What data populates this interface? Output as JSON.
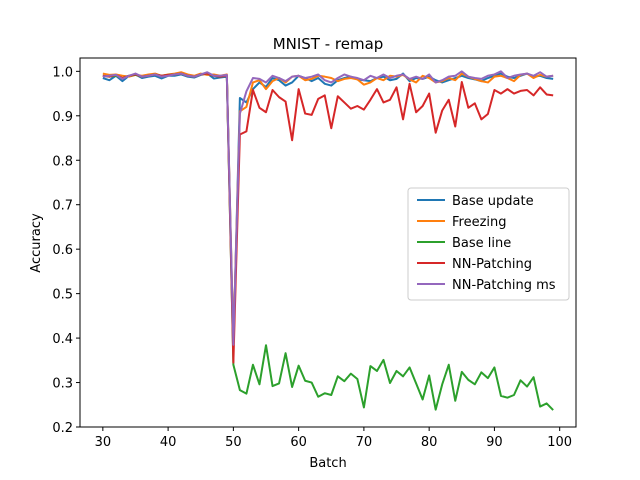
{
  "chart_data": {
    "type": "line",
    "title": "MNIST - remap",
    "xlabel": "Batch",
    "ylabel": "Accuracy",
    "xlim": [
      26.5,
      102.5
    ],
    "ylim": [
      0.2,
      1.03
    ],
    "xticks": [
      30,
      40,
      50,
      60,
      70,
      80,
      90,
      100
    ],
    "yticks": [
      0.2,
      0.3,
      0.4,
      0.5,
      0.6,
      0.7,
      0.8,
      0.9,
      1.0
    ],
    "xtick_labels": [
      "30",
      "40",
      "50",
      "60",
      "70",
      "80",
      "90",
      "100"
    ],
    "ytick_labels": [
      "0.2",
      "0.3",
      "0.4",
      "0.5",
      "0.6",
      "0.7",
      "0.8",
      "0.9",
      "1.0"
    ],
    "legend_position": "center-right",
    "x": [
      30,
      31,
      32,
      33,
      34,
      35,
      36,
      37,
      38,
      39,
      40,
      41,
      42,
      43,
      44,
      45,
      46,
      47,
      48,
      49,
      50,
      51,
      52,
      53,
      54,
      55,
      56,
      57,
      58,
      59,
      60,
      61,
      62,
      63,
      64,
      65,
      66,
      67,
      68,
      69,
      70,
      71,
      72,
      73,
      74,
      75,
      76,
      77,
      78,
      79,
      80,
      81,
      82,
      83,
      84,
      85,
      86,
      87,
      88,
      89,
      90,
      91,
      92,
      93,
      94,
      95,
      96,
      97,
      98,
      99
    ],
    "series": [
      {
        "name": "Base update",
        "color": "#1f77b4",
        "values": [
          0.985,
          0.98,
          0.99,
          0.978,
          0.99,
          0.993,
          0.985,
          0.988,
          0.99,
          0.984,
          0.99,
          0.99,
          0.993,
          0.988,
          0.986,
          0.992,
          0.995,
          0.984,
          0.986,
          0.988,
          0.38,
          0.94,
          0.93,
          0.96,
          0.975,
          0.965,
          0.985,
          0.98,
          0.968,
          0.975,
          0.99,
          0.985,
          0.978,
          0.985,
          0.972,
          0.968,
          0.98,
          0.985,
          0.988,
          0.982,
          0.98,
          0.978,
          0.985,
          0.988,
          0.98,
          0.983,
          0.995,
          0.978,
          0.985,
          0.983,
          0.988,
          0.98,
          0.975,
          0.98,
          0.985,
          0.99,
          0.985,
          0.982,
          0.978,
          0.985,
          0.99,
          0.995,
          0.988,
          0.985,
          0.99,
          0.995,
          0.988,
          0.99,
          0.985,
          0.983
        ]
      },
      {
        "name": "Freezing",
        "color": "#ff7f0e",
        "values": [
          0.995,
          0.992,
          0.993,
          0.99,
          0.988,
          0.992,
          0.99,
          0.993,
          0.995,
          0.99,
          0.993,
          0.995,
          0.998,
          0.993,
          0.99,
          0.995,
          0.992,
          0.993,
          0.99,
          0.993,
          0.39,
          0.91,
          0.92,
          0.975,
          0.98,
          0.96,
          0.978,
          0.985,
          0.975,
          0.988,
          0.99,
          0.98,
          0.983,
          0.99,
          0.988,
          0.985,
          0.978,
          0.983,
          0.985,
          0.982,
          0.97,
          0.975,
          0.985,
          0.98,
          0.99,
          0.988,
          0.992,
          0.982,
          0.975,
          0.99,
          0.985,
          0.975,
          0.978,
          0.985,
          0.98,
          0.995,
          0.988,
          0.983,
          0.978,
          0.975,
          0.988,
          0.99,
          0.985,
          0.978,
          0.992,
          0.995,
          0.985,
          0.992,
          0.988,
          0.99
        ]
      },
      {
        "name": "Base line",
        "color": "#2ca02c",
        "values": [
          0.99,
          0.988,
          0.99,
          0.985,
          0.99,
          0.992,
          0.988,
          0.99,
          0.993,
          0.99,
          0.992,
          0.993,
          0.995,
          0.99,
          0.988,
          0.993,
          0.995,
          0.99,
          0.988,
          0.99,
          0.34,
          0.283,
          0.275,
          0.34,
          0.296,
          0.384,
          0.292,
          0.298,
          0.366,
          0.29,
          0.338,
          0.304,
          0.3,
          0.268,
          0.276,
          0.272,
          0.314,
          0.303,
          0.32,
          0.308,
          0.244,
          0.337,
          0.326,
          0.351,
          0.299,
          0.326,
          0.314,
          0.334,
          0.298,
          0.262,
          0.316,
          0.239,
          0.296,
          0.34,
          0.259,
          0.324,
          0.306,
          0.296,
          0.323,
          0.31,
          0.334,
          0.27,
          0.266,
          0.272,
          0.305,
          0.291,
          0.312,
          0.246,
          0.253,
          0.238
        ]
      },
      {
        "name": "NN-Patching",
        "color": "#d62728",
        "values": [
          0.99,
          0.988,
          0.992,
          0.985,
          0.99,
          0.993,
          0.988,
          0.99,
          0.993,
          0.99,
          0.992,
          0.993,
          0.995,
          0.99,
          0.988,
          0.993,
          0.995,
          0.99,
          0.988,
          0.99,
          0.345,
          0.858,
          0.865,
          0.958,
          0.918,
          0.908,
          0.958,
          0.942,
          0.932,
          0.845,
          0.96,
          0.905,
          0.902,
          0.938,
          0.946,
          0.872,
          0.944,
          0.93,
          0.916,
          0.922,
          0.914,
          0.936,
          0.96,
          0.93,
          0.936,
          0.964,
          0.892,
          0.972,
          0.908,
          0.922,
          0.95,
          0.862,
          0.912,
          0.936,
          0.876,
          0.976,
          0.918,
          0.928,
          0.892,
          0.904,
          0.958,
          0.95,
          0.96,
          0.95,
          0.956,
          0.958,
          0.946,
          0.964,
          0.948,
          0.946
        ]
      },
      {
        "name": "NN-Patching ms",
        "color": "#9467bd",
        "values": [
          0.988,
          0.99,
          0.992,
          0.983,
          0.99,
          0.995,
          0.988,
          0.99,
          0.993,
          0.988,
          0.99,
          0.993,
          0.995,
          0.99,
          0.988,
          0.993,
          0.998,
          0.99,
          0.99,
          0.992,
          0.385,
          0.905,
          0.955,
          0.985,
          0.983,
          0.975,
          0.99,
          0.985,
          0.978,
          0.988,
          0.99,
          0.985,
          0.988,
          0.993,
          0.98,
          0.975,
          0.985,
          0.993,
          0.988,
          0.985,
          0.98,
          0.99,
          0.985,
          0.993,
          0.985,
          0.99,
          0.993,
          0.983,
          0.988,
          0.983,
          0.993,
          0.975,
          0.98,
          0.988,
          0.99,
          1.0,
          0.988,
          0.985,
          0.983,
          0.99,
          0.993,
          1.0,
          0.985,
          0.99,
          0.993,
          0.995,
          0.99,
          0.998,
          0.988,
          0.99
        ]
      }
    ]
  }
}
